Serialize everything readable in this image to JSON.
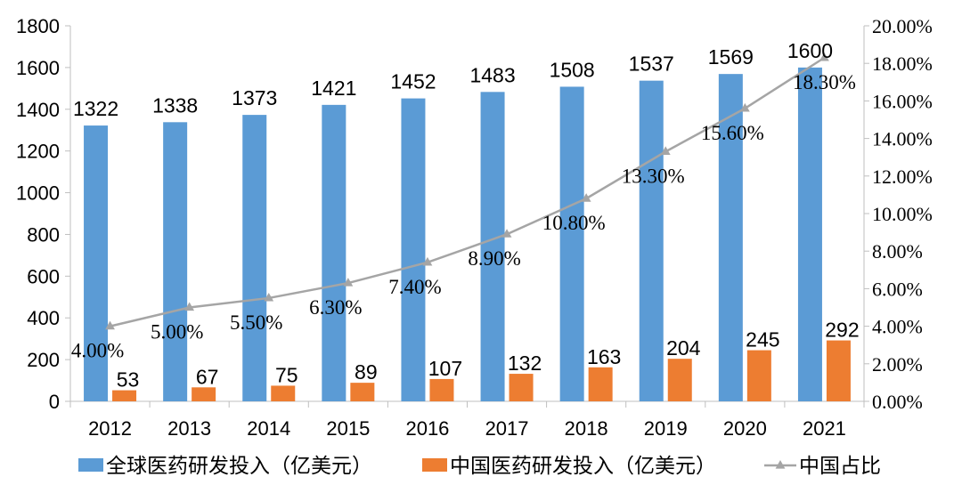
{
  "chart_data": {
    "type": "bar",
    "categories": [
      "2012",
      "2013",
      "2014",
      "2015",
      "2016",
      "2017",
      "2018",
      "2019",
      "2020",
      "2021"
    ],
    "series": [
      {
        "name": "全球医药研发投入（亿美元）",
        "kind": "bar",
        "axis": "left",
        "color": "#5b9bd5",
        "values": [
          1322,
          1338,
          1373,
          1421,
          1452,
          1483,
          1508,
          1537,
          1569,
          1600
        ],
        "labels": [
          "1322",
          "1338",
          "1373",
          "1421",
          "1452",
          "1483",
          "1508",
          "1537",
          "1569",
          "1600"
        ]
      },
      {
        "name": "中国医药研发投入（亿美元）",
        "kind": "bar",
        "axis": "left",
        "color": "#ed7d31",
        "values": [
          53,
          67,
          75,
          89,
          107,
          132,
          163,
          204,
          245,
          292
        ],
        "labels": [
          "53",
          "67",
          "75",
          "89",
          "107",
          "132",
          "163",
          "204",
          "245",
          "292"
        ]
      },
      {
        "name": "中国占比",
        "kind": "line",
        "axis": "right",
        "color": "#a5a5a5",
        "values": [
          4.0,
          5.0,
          5.5,
          6.3,
          7.4,
          8.9,
          10.8,
          13.3,
          15.6,
          18.3
        ],
        "labels": [
          "4.00%",
          "5.00%",
          "5.50%",
          "6.30%",
          "7.40%",
          "8.90%",
          "10.80%",
          "13.30%",
          "15.60%",
          "18.30%"
        ]
      }
    ],
    "y_left": {
      "range": [
        0,
        1800
      ],
      "ticks": [
        "0",
        "200",
        "400",
        "600",
        "800",
        "1000",
        "1200",
        "1400",
        "1600",
        "1800"
      ]
    },
    "y_right": {
      "range": [
        0,
        20
      ],
      "ticks": [
        "0.00%",
        "2.00%",
        "4.00%",
        "6.00%",
        "8.00%",
        "10.00%",
        "12.00%",
        "14.00%",
        "16.00%",
        "18.00%",
        "20.00%"
      ]
    },
    "grid": false,
    "legend_position": "bottom",
    "text_color": "#000000",
    "axis_color": "#bfbfbf"
  }
}
